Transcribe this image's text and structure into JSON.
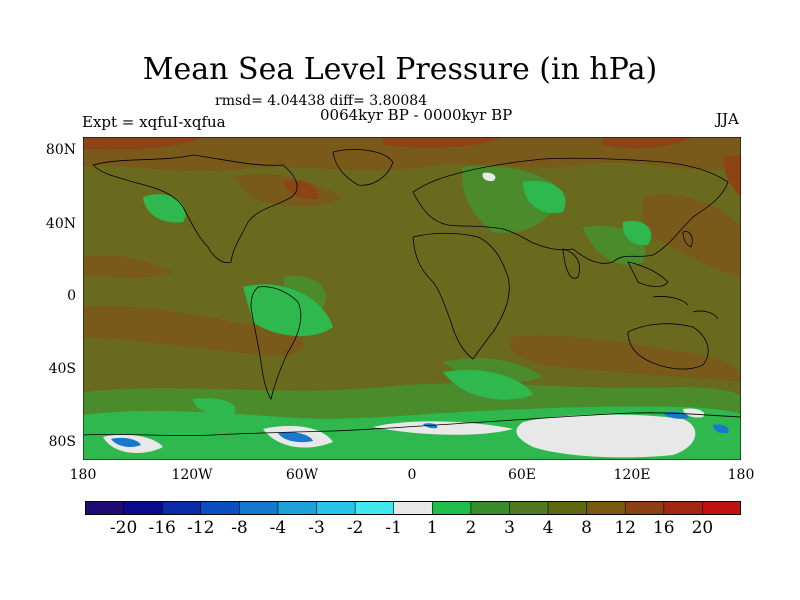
{
  "title": "Mean Sea Level Pressure (in hPa)",
  "stats": "rmsd= 4.04438 diff= 3.80084",
  "period": "0064kyr BP - 0000kyr BP",
  "experiment": "Expt = xqfuI-xqfua",
  "season": "JJA",
  "axes": {
    "y_ticks": [
      "80N",
      "40N",
      "0",
      "40S",
      "80S"
    ],
    "x_ticks": [
      "180",
      "120W",
      "60W",
      "0",
      "60E",
      "120E",
      "180"
    ]
  },
  "colorbar": {
    "colors": [
      "#1f0a73",
      "#0a0a8c",
      "#0a2aa8",
      "#0a4fc0",
      "#1578cc",
      "#1ea0d8",
      "#28c4e8",
      "#40e8f0",
      "#e8e8e8",
      "#1fbe4a",
      "#3a8c2a",
      "#4f7a20",
      "#5f6a10",
      "#7a5a10",
      "#8c4010",
      "#a02810",
      "#c01010"
    ],
    "labels": [
      "-20",
      "-16",
      "-12",
      "-8",
      "-4",
      "-3",
      "-2",
      "-1",
      "1",
      "2",
      "3",
      "4",
      "8",
      "12",
      "16",
      "20"
    ]
  },
  "map_colors": {
    "background": "#6a6a1e",
    "band_positive": "#7a5a1a",
    "band_high": "#8c4416",
    "green_light": "#2eb84e",
    "green_mid": "#4a8c2c",
    "white": "#e8e8e8",
    "blue": "#1a78cc"
  }
}
